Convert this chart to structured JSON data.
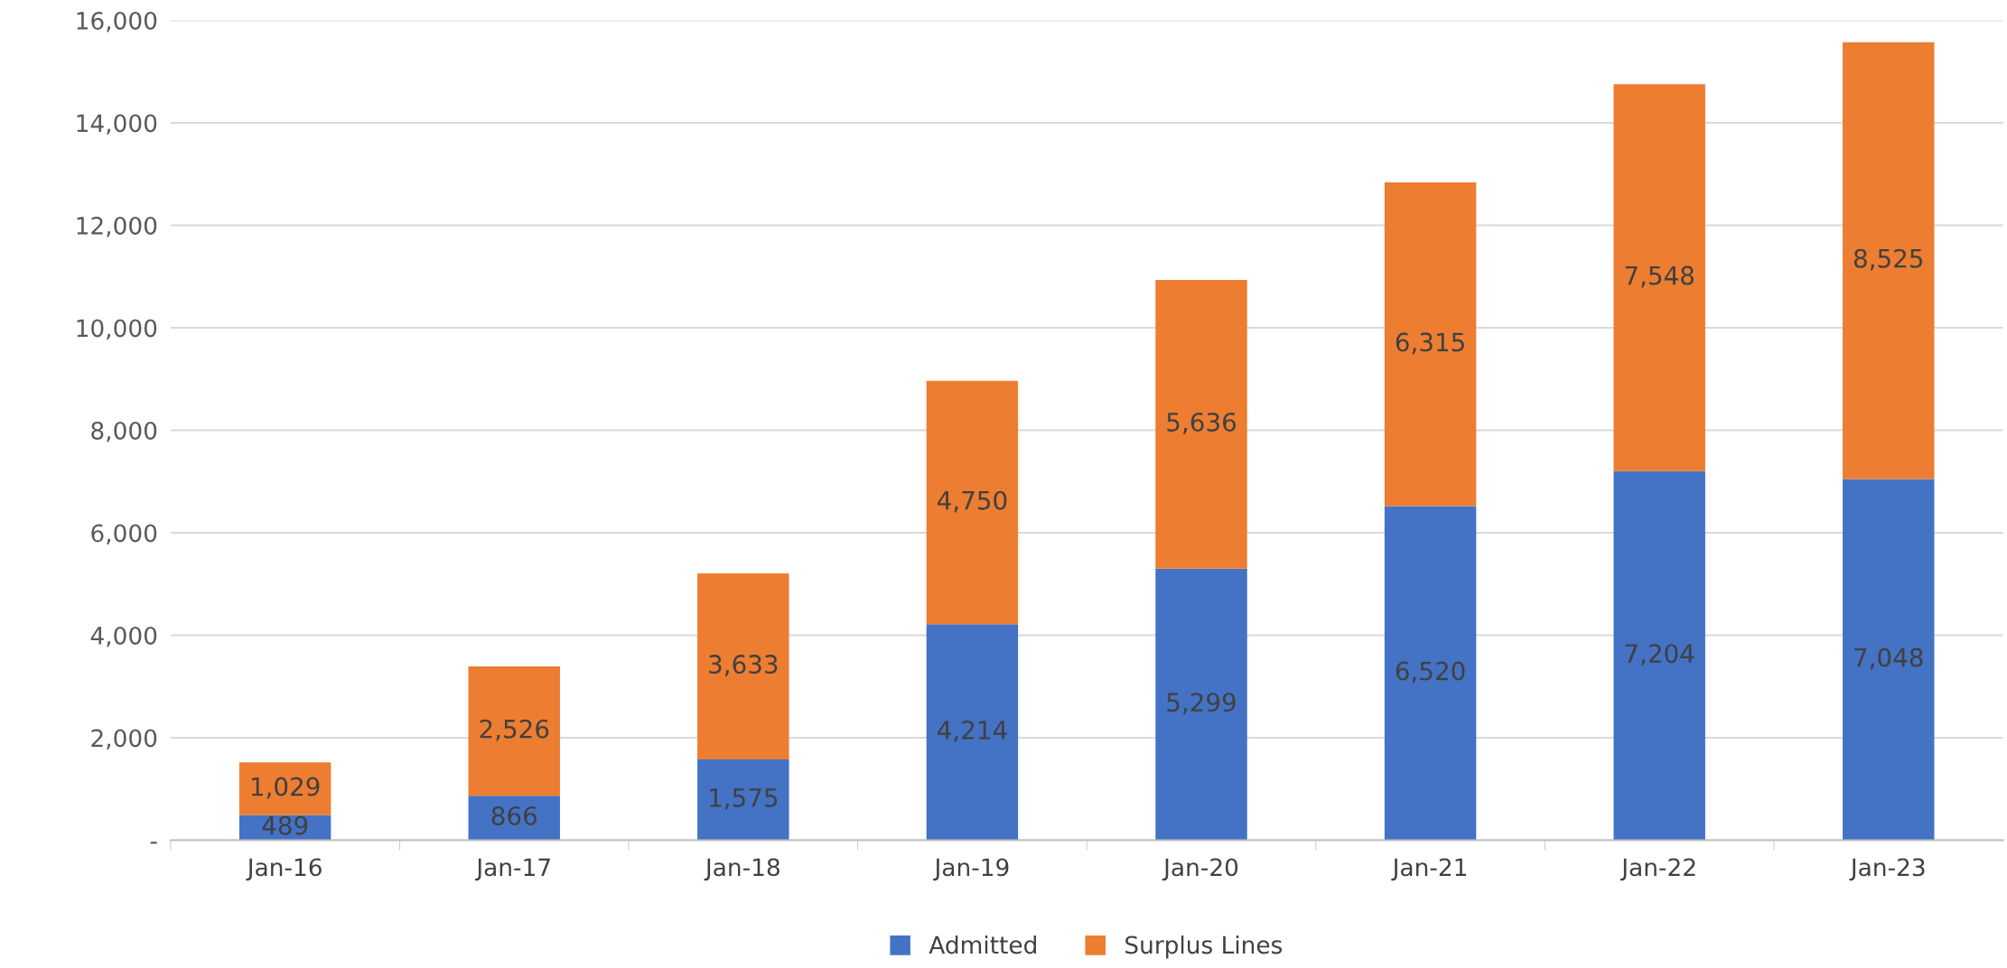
{
  "chart_data": {
    "type": "bar",
    "stacked": true,
    "categories": [
      "Jan-16",
      "Jan-17",
      "Jan-18",
      "Jan-19",
      "Jan-20",
      "Jan-21",
      "Jan-22",
      "Jan-23"
    ],
    "series": [
      {
        "name": "Admitted",
        "color": "#4472c4",
        "values": [
          489,
          866,
          1575,
          4214,
          5299,
          6520,
          7204,
          7048
        ],
        "value_labels": [
          "489",
          "866",
          "1,575",
          "4,214",
          "5,299",
          "6,520",
          "7,204",
          "7,048"
        ]
      },
      {
        "name": "Surplus Lines",
        "color": "#ed7d31",
        "values": [
          1029,
          2526,
          3633,
          4750,
          5636,
          6315,
          7548,
          8525
        ],
        "value_labels": [
          "1,029",
          "2,526",
          "3,633",
          "4,750",
          "5,636",
          "6,315",
          "7,548",
          "8,525"
        ]
      }
    ],
    "ylim": [
      0,
      16000
    ],
    "yticks": [
      {
        "value": 0,
        "label": "-"
      },
      {
        "value": 2000,
        "label": "2,000"
      },
      {
        "value": 4000,
        "label": "4,000"
      },
      {
        "value": 6000,
        "label": "6,000"
      },
      {
        "value": 8000,
        "label": "8,000"
      },
      {
        "value": 10000,
        "label": "10,000"
      },
      {
        "value": 12000,
        "label": "12,000"
      },
      {
        "value": 14000,
        "label": "14,000"
      },
      {
        "value": 16000,
        "label": "16,000"
      }
    ],
    "grid": "y",
    "legend": "bottom"
  }
}
